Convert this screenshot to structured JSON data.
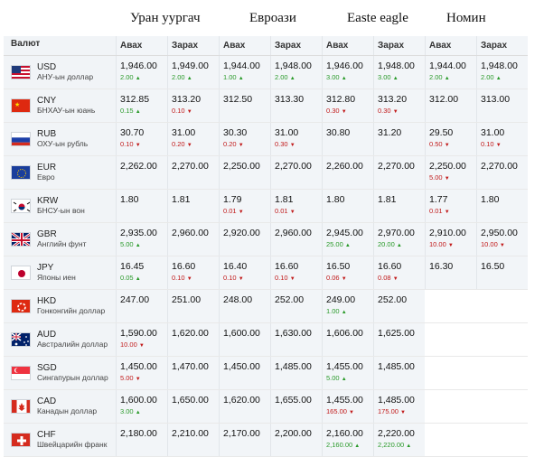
{
  "banks": [
    {
      "name": "Уран уургач"
    },
    {
      "name": "Евроази"
    },
    {
      "name": "Easte eagle"
    },
    {
      "name": "Номин"
    }
  ],
  "header": {
    "currency": "Валют",
    "buy": "Авах",
    "sell": "Зарах"
  },
  "rows": [
    {
      "code": "USD",
      "name": "АНУ-ын доллар",
      "flag": "us-flag-icon",
      "vals": [
        {
          "v": "1,946.00",
          "c": "2.00",
          "d": "up"
        },
        {
          "v": "1,949.00",
          "c": "2.00",
          "d": "up"
        },
        {
          "v": "1,944.00",
          "c": "1.00",
          "d": "up"
        },
        {
          "v": "1,948.00",
          "c": "2.00",
          "d": "up"
        },
        {
          "v": "1,946.00",
          "c": "3.00",
          "d": "up"
        },
        {
          "v": "1,948.00",
          "c": "3.00",
          "d": "up"
        },
        {
          "v": "1,944.00",
          "c": "2.00",
          "d": "up"
        },
        {
          "v": "1,948.00",
          "c": "2.00",
          "d": "up"
        }
      ]
    },
    {
      "code": "CNY",
      "name": "БНХАУ-ын юань",
      "flag": "china-flag-icon",
      "vals": [
        {
          "v": "312.85",
          "c": "0.15",
          "d": "up"
        },
        {
          "v": "313.20",
          "c": "0.10",
          "d": "down"
        },
        {
          "v": "312.50",
          "c": "",
          "d": ""
        },
        {
          "v": "313.30",
          "c": "",
          "d": ""
        },
        {
          "v": "312.80",
          "c": "0.30",
          "d": "down"
        },
        {
          "v": "313.20",
          "c": "0.30",
          "d": "down"
        },
        {
          "v": "312.00",
          "c": "",
          "d": ""
        },
        {
          "v": "313.00",
          "c": "",
          "d": ""
        }
      ]
    },
    {
      "code": "RUB",
      "name": "ОХУ-ын рубль",
      "flag": "russia-flag-icon",
      "vals": [
        {
          "v": "30.70",
          "c": "0.10",
          "d": "down"
        },
        {
          "v": "31.00",
          "c": "0.20",
          "d": "down"
        },
        {
          "v": "30.30",
          "c": "0.20",
          "d": "down"
        },
        {
          "v": "31.00",
          "c": "0.30",
          "d": "down"
        },
        {
          "v": "30.80",
          "c": "",
          "d": ""
        },
        {
          "v": "31.20",
          "c": "",
          "d": ""
        },
        {
          "v": "29.50",
          "c": "0.50",
          "d": "down"
        },
        {
          "v": "31.00",
          "c": "0.10",
          "d": "down"
        }
      ]
    },
    {
      "code": "EUR",
      "name": "Евро",
      "flag": "eu-flag-icon",
      "vals": [
        {
          "v": "2,262.00",
          "c": "",
          "d": ""
        },
        {
          "v": "2,270.00",
          "c": "",
          "d": ""
        },
        {
          "v": "2,250.00",
          "c": "",
          "d": ""
        },
        {
          "v": "2,270.00",
          "c": "",
          "d": ""
        },
        {
          "v": "2,260.00",
          "c": "",
          "d": ""
        },
        {
          "v": "2,270.00",
          "c": "",
          "d": ""
        },
        {
          "v": "2,250.00",
          "c": "5.00",
          "d": "down"
        },
        {
          "v": "2,270.00",
          "c": "",
          "d": ""
        }
      ]
    },
    {
      "code": "KRW",
      "name": "БНСУ-ын вон",
      "flag": "korea-flag-icon",
      "vals": [
        {
          "v": "1.80",
          "c": "",
          "d": ""
        },
        {
          "v": "1.81",
          "c": "",
          "d": ""
        },
        {
          "v": "1.79",
          "c": "0.01",
          "d": "down"
        },
        {
          "v": "1.81",
          "c": "0.01",
          "d": "down"
        },
        {
          "v": "1.80",
          "c": "",
          "d": ""
        },
        {
          "v": "1.81",
          "c": "",
          "d": ""
        },
        {
          "v": "1.77",
          "c": "0.01",
          "d": "down"
        },
        {
          "v": "1.80",
          "c": "",
          "d": ""
        }
      ]
    },
    {
      "code": "GBR",
      "name": "Английн фунт",
      "flag": "uk-flag-icon",
      "vals": [
        {
          "v": "2,935.00",
          "c": "5.00",
          "d": "up"
        },
        {
          "v": "2,960.00",
          "c": "",
          "d": ""
        },
        {
          "v": "2,920.00",
          "c": "",
          "d": ""
        },
        {
          "v": "2,960.00",
          "c": "",
          "d": ""
        },
        {
          "v": "2,945.00",
          "c": "25.00",
          "d": "up"
        },
        {
          "v": "2,970.00",
          "c": "20.00",
          "d": "up"
        },
        {
          "v": "2,910.00",
          "c": "10.00",
          "d": "down"
        },
        {
          "v": "2,950.00",
          "c": "10.00",
          "d": "down"
        }
      ]
    },
    {
      "code": "JPY",
      "name": "Японы иен",
      "flag": "japan-flag-icon",
      "vals": [
        {
          "v": "16.45",
          "c": "0.05",
          "d": "up"
        },
        {
          "v": "16.60",
          "c": "0.10",
          "d": "down"
        },
        {
          "v": "16.40",
          "c": "0.10",
          "d": "down"
        },
        {
          "v": "16.60",
          "c": "0.10",
          "d": "down"
        },
        {
          "v": "16.50",
          "c": "0.06",
          "d": "down"
        },
        {
          "v": "16.60",
          "c": "0.08",
          "d": "down"
        },
        {
          "v": "16.30",
          "c": "",
          "d": ""
        },
        {
          "v": "16.50",
          "c": "",
          "d": ""
        }
      ]
    },
    {
      "code": "HKD",
      "name": "Гонконгийн доллар",
      "flag": "hongkong-flag-icon",
      "vals": [
        {
          "v": "247.00",
          "c": "",
          "d": ""
        },
        {
          "v": "251.00",
          "c": "",
          "d": ""
        },
        {
          "v": "248.00",
          "c": "",
          "d": ""
        },
        {
          "v": "252.00",
          "c": "",
          "d": ""
        },
        {
          "v": "249.00",
          "c": "1.00",
          "d": "up"
        },
        {
          "v": "252.00",
          "c": "",
          "d": ""
        },
        null,
        null
      ]
    },
    {
      "code": "AUD",
      "name": "Австралийн доллар",
      "flag": "australia-flag-icon",
      "vals": [
        {
          "v": "1,590.00",
          "c": "10.00",
          "d": "down"
        },
        {
          "v": "1,620.00",
          "c": "",
          "d": ""
        },
        {
          "v": "1,600.00",
          "c": "",
          "d": ""
        },
        {
          "v": "1,630.00",
          "c": "",
          "d": ""
        },
        {
          "v": "1,606.00",
          "c": "",
          "d": ""
        },
        {
          "v": "1,625.00",
          "c": "",
          "d": ""
        },
        null,
        null
      ]
    },
    {
      "code": "SGD",
      "name": "Сингапурын доллар",
      "flag": "singapore-flag-icon",
      "vals": [
        {
          "v": "1,450.00",
          "c": "5.00",
          "d": "down"
        },
        {
          "v": "1,470.00",
          "c": "",
          "d": ""
        },
        {
          "v": "1,450.00",
          "c": "",
          "d": ""
        },
        {
          "v": "1,485.00",
          "c": "",
          "d": ""
        },
        {
          "v": "1,455.00",
          "c": "5.00",
          "d": "up"
        },
        {
          "v": "1,485.00",
          "c": "",
          "d": ""
        },
        null,
        null
      ]
    },
    {
      "code": "CAD",
      "name": "Канадын доллар",
      "flag": "canada-flag-icon",
      "vals": [
        {
          "v": "1,600.00",
          "c": "3.00",
          "d": "up"
        },
        {
          "v": "1,650.00",
          "c": "",
          "d": ""
        },
        {
          "v": "1,620.00",
          "c": "",
          "d": ""
        },
        {
          "v": "1,655.00",
          "c": "",
          "d": ""
        },
        {
          "v": "1,455.00",
          "c": "165.00",
          "d": "down"
        },
        {
          "v": "1,485.00",
          "c": "175.00",
          "d": "down"
        },
        null,
        null
      ]
    },
    {
      "code": "CHF",
      "name": "Швейцарийн франк",
      "flag": "swiss-flag-icon",
      "vals": [
        {
          "v": "2,180.00",
          "c": "",
          "d": ""
        },
        {
          "v": "2,210.00",
          "c": "",
          "d": ""
        },
        {
          "v": "2,170.00",
          "c": "",
          "d": ""
        },
        {
          "v": "2,200.00",
          "c": "",
          "d": ""
        },
        {
          "v": "2,160.00",
          "c": "2,160.00",
          "d": "up"
        },
        {
          "v": "2,220.00",
          "c": "2,220.00",
          "d": "up"
        },
        null,
        null
      ]
    }
  ],
  "colors": {
    "up": "#2a9a2a",
    "down": "#c11a1a",
    "cell_bg": "#f2f5f8"
  }
}
